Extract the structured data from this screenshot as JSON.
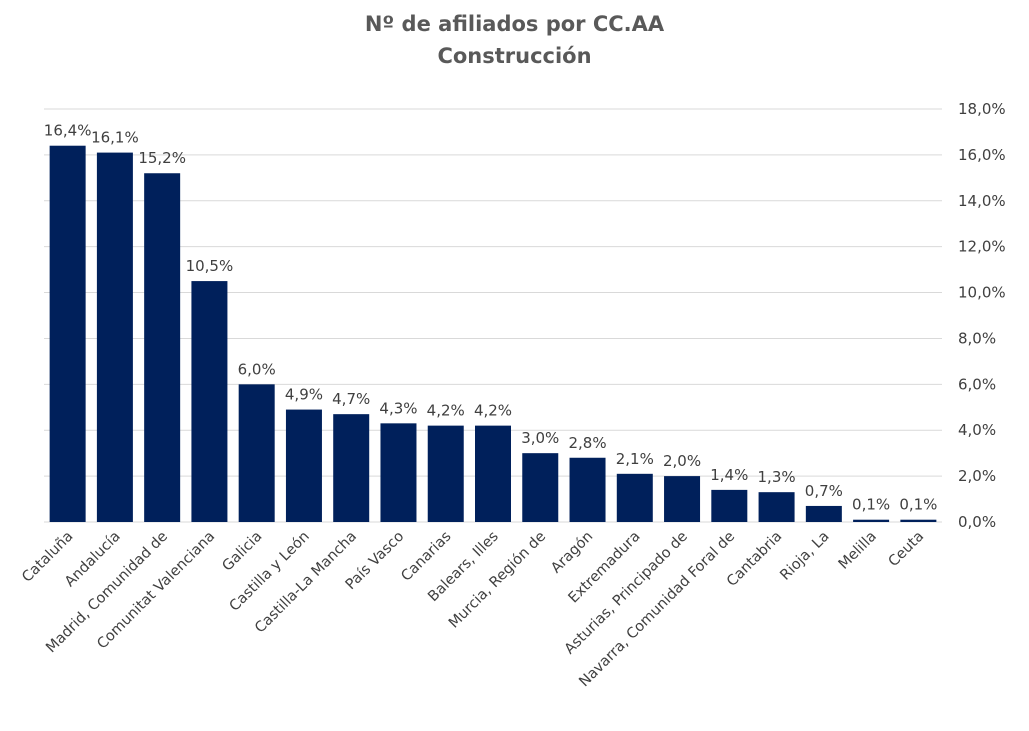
{
  "chart_data": {
    "type": "bar",
    "title": "Nº de afiliados por CC.AA",
    "subtitle": "Construcción",
    "categories": [
      "Cataluña",
      "Andalucía",
      "Madrid, Comunidad de",
      "Comunitat Valenciana",
      "Galicia",
      "Castilla y León",
      "Castilla-La Mancha",
      "País Vasco",
      "Canarias",
      "Balears, Illes",
      "Murcia, Región de",
      "Aragón",
      "Extremadura",
      "Asturias, Principado de",
      "Navarra, Comunidad Foral de",
      "Cantabria",
      "Rioja, La",
      "Melilla",
      "Ceuta"
    ],
    "values": [
      16.4,
      16.1,
      15.2,
      10.5,
      6.0,
      4.9,
      4.7,
      4.3,
      4.2,
      4.2,
      3.0,
      2.8,
      2.1,
      2.0,
      1.4,
      1.3,
      0.7,
      0.1,
      0.1
    ],
    "data_labels": [
      "16,4%",
      "16,1%",
      "15,2%",
      "10,5%",
      "6,0%",
      "4,9%",
      "4,7%",
      "4,3%",
      "4,2%",
      "4,2%",
      "3,0%",
      "2,8%",
      "2,1%",
      "2,0%",
      "1,4%",
      "1,3%",
      "0,7%",
      "0,1%",
      "0,1%"
    ],
    "y_ticks": [
      0,
      2,
      4,
      6,
      8,
      10,
      12,
      14,
      16,
      18
    ],
    "y_tick_labels": [
      "0,0%",
      "2,0%",
      "4,0%",
      "6,0%",
      "8,0%",
      "10,0%",
      "12,0%",
      "14,0%",
      "16,0%",
      "18,0%"
    ],
    "ylim": [
      0,
      18
    ],
    "y_axis_side": "right",
    "grid": true,
    "bar_color": "#00205b"
  }
}
